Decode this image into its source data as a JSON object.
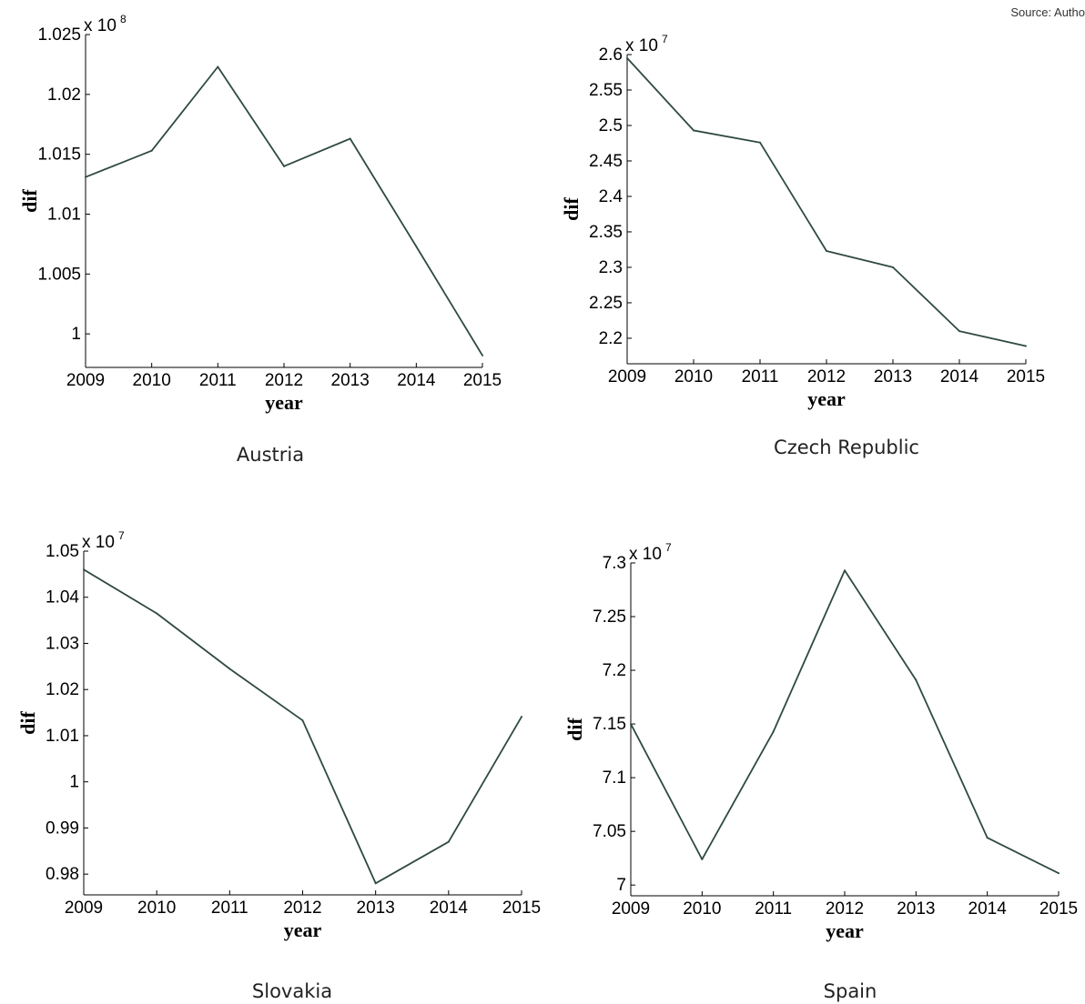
{
  "source_note": "Source: Autho",
  "chart_data": [
    {
      "type": "line",
      "caption": "Austria",
      "xlabel": "year",
      "ylabel": "dif",
      "exponent_base": "x 10",
      "exponent_power": "8",
      "x": [
        2009,
        2010,
        2011,
        2012,
        2013,
        2014,
        2015
      ],
      "y": [
        1.0131,
        1.0153,
        1.0223,
        1.014,
        1.0163,
        1.0073,
        0.9982
      ],
      "xlim": [
        2009,
        2015
      ],
      "ylim": [
        0.9972,
        1.025
      ],
      "yticks": [
        1,
        1.005,
        1.01,
        1.015,
        1.02,
        1.025
      ],
      "ytick_labels": [
        "1",
        "1.005",
        "1.01",
        "1.015",
        "1.02",
        "1.025"
      ],
      "line_color": "#2f4a3f"
    },
    {
      "type": "line",
      "caption": "Czech Republic",
      "xlabel": "year",
      "ylabel": "dif",
      "exponent_base": "x 10",
      "exponent_power": "7",
      "x": [
        2009,
        2010,
        2011,
        2012,
        2013,
        2014,
        2015
      ],
      "y": [
        2.595,
        2.493,
        2.476,
        2.323,
        2.3,
        2.21,
        2.189
      ],
      "xlim": [
        2009,
        2015
      ],
      "ylim": [
        2.164,
        2.6
      ],
      "yticks": [
        2.2,
        2.25,
        2.3,
        2.35,
        2.4,
        2.45,
        2.5,
        2.55,
        2.6
      ],
      "ytick_labels": [
        "2.2",
        "2.25",
        "2.3",
        "2.35",
        "2.4",
        "2.45",
        "2.5",
        "2.55",
        "2.6"
      ],
      "line_color": "#2f4a3f"
    },
    {
      "type": "line",
      "caption": "Slovakia",
      "xlabel": "year",
      "ylabel": "dif",
      "exponent_base": "x 10",
      "exponent_power": "7",
      "x": [
        2009,
        2010,
        2011,
        2012,
        2013,
        2014,
        2015
      ],
      "y": [
        1.046,
        1.0365,
        1.0245,
        1.0133,
        0.978,
        0.987,
        1.0141
      ],
      "xlim": [
        2009,
        2015
      ],
      "ylim": [
        0.9755,
        1.05
      ],
      "yticks": [
        0.98,
        0.99,
        1,
        1.01,
        1.02,
        1.03,
        1.04,
        1.05
      ],
      "ytick_labels": [
        "0.98",
        "0.99",
        "1",
        "1.01",
        "1.02",
        "1.03",
        "1.04",
        "1.05"
      ],
      "line_color": "#2f4a3f"
    },
    {
      "type": "line",
      "caption": "Spain",
      "xlabel": "year",
      "ylabel": "dif",
      "exponent_base": "x 10",
      "exponent_power": "7",
      "x": [
        2009,
        2010,
        2011,
        2012,
        2013,
        2014,
        2015
      ],
      "y": [
        7.15,
        7.024,
        7.143,
        7.293,
        7.191,
        7.044,
        7.011
      ],
      "xlim": [
        2009,
        2015
      ],
      "ylim": [
        6.99,
        7.3
      ],
      "yticks": [
        7,
        7.05,
        7.1,
        7.15,
        7.2,
        7.25,
        7.3
      ],
      "ytick_labels": [
        "7",
        "7.05",
        "7.1",
        "7.15",
        "7.2",
        "7.25",
        "7.3"
      ],
      "line_color": "#2f4a3f"
    }
  ]
}
